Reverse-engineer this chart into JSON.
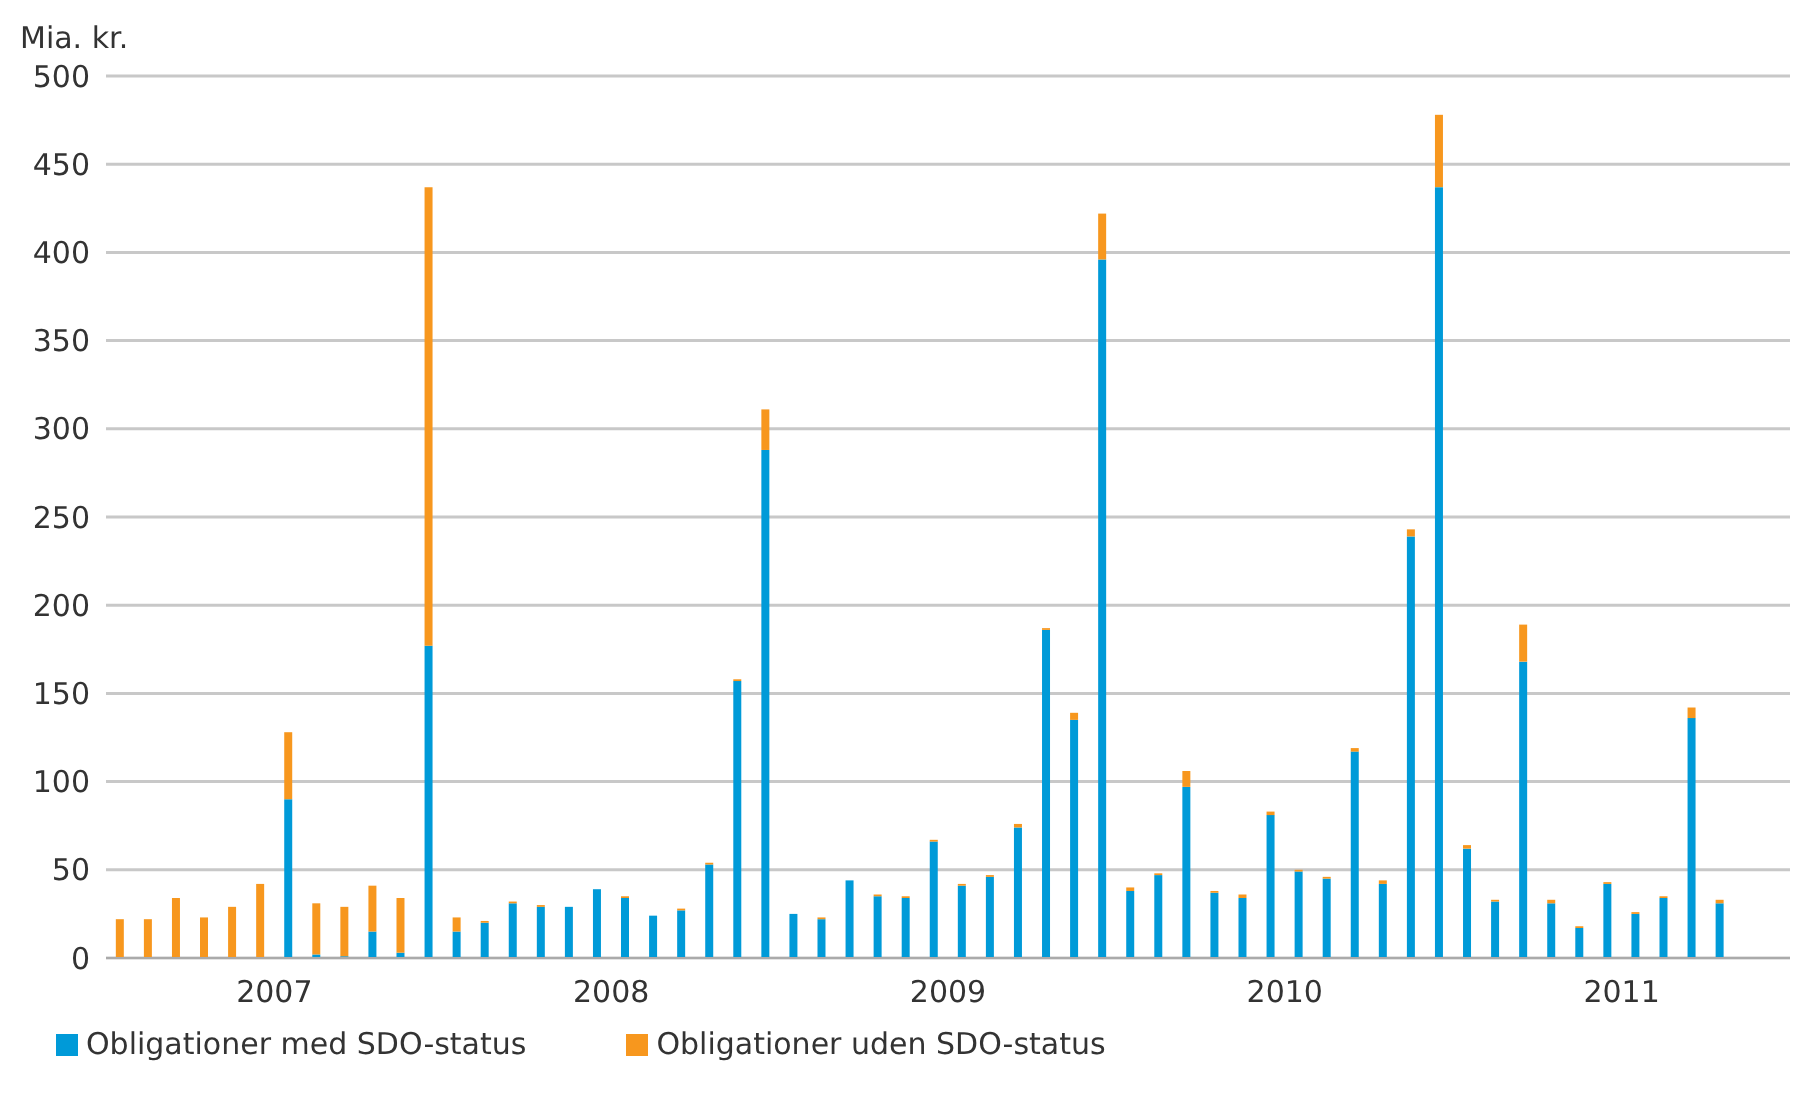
{
  "chart_data": {
    "type": "bar",
    "stacked": true,
    "ylabel": "Mia. kr.",
    "categories": [
      null,
      null,
      null,
      null,
      null,
      null,
      "2007",
      null,
      null,
      null,
      null,
      null,
      null,
      null,
      null,
      null,
      null,
      null,
      "2008",
      null,
      null,
      null,
      null,
      null,
      null,
      null,
      null,
      null,
      null,
      null,
      "2009",
      null,
      null,
      null,
      null,
      null,
      null,
      null,
      null,
      null,
      null,
      null,
      "2010",
      null,
      null,
      null,
      null,
      null,
      null,
      null,
      null,
      null,
      null,
      null,
      "2011",
      null,
      null,
      null,
      null,
      null
    ],
    "series": [
      {
        "name": "Obligationer med SDO-status",
        "color": "#009ad8",
        "values": [
          0,
          0,
          0,
          0,
          0,
          0,
          90,
          2,
          1,
          15,
          3,
          177,
          15,
          20,
          31,
          29,
          29,
          39,
          34,
          24,
          27,
          53,
          157,
          288,
          25,
          22,
          44,
          35,
          34,
          66,
          41,
          46,
          74,
          186,
          135,
          396,
          38,
          47,
          97,
          37,
          34,
          81,
          49,
          45,
          117,
          42,
          239,
          437,
          62,
          32,
          168,
          31,
          17,
          42,
          25,
          34,
          136,
          31,
          null,
          null
        ]
      },
      {
        "name": "Obligationer uden SDO-status",
        "color": "#f7971e",
        "values": [
          22,
          22,
          34,
          23,
          29,
          42,
          38,
          29,
          28,
          26,
          31,
          260,
          8,
          1,
          1,
          1,
          0,
          0,
          1,
          0,
          1,
          1,
          1,
          23,
          0,
          1,
          0,
          1,
          1,
          1,
          1,
          1,
          2,
          1,
          4,
          26,
          2,
          1,
          9,
          1,
          2,
          2,
          1,
          1,
          2,
          2,
          4,
          41,
          2,
          1,
          21,
          2,
          1,
          1,
          1,
          1,
          6,
          2,
          null,
          null
        ]
      }
    ],
    "ylim": [
      0,
      500
    ],
    "yticks": [
      0,
      50,
      100,
      150,
      200,
      250,
      300,
      350,
      400,
      450,
      500
    ],
    "grid": "y",
    "legend": "bottom left"
  }
}
